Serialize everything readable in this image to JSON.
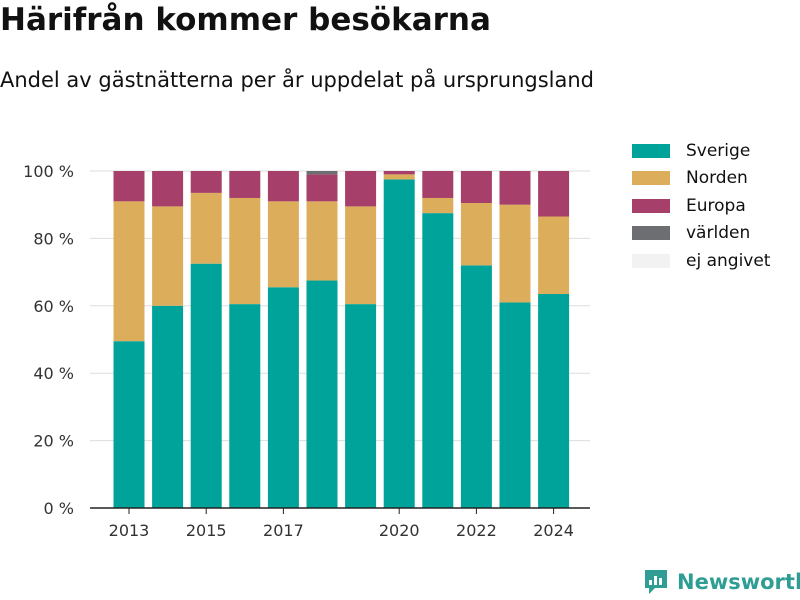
{
  "header": {
    "title": "Härifrån kommer besökarna",
    "subtitle": "Andel av gästnätterna per år uppdelat på ursprungsland"
  },
  "brand": {
    "name": "Newsworthy",
    "color": "#2e9e95"
  },
  "chart_data": {
    "type": "bar",
    "stacked": true,
    "years": [
      2013,
      2014,
      2015,
      2016,
      2017,
      2018,
      2019,
      2020,
      2021,
      2022,
      2023,
      2024
    ],
    "x_ticks": [
      "2013",
      "2015",
      "2017",
      "2020",
      "2022",
      "2024"
    ],
    "x_tick_years": [
      2013,
      2015,
      2017,
      2020,
      2022,
      2024
    ],
    "y_ticks": [
      "0 %",
      "20 %",
      "40 %",
      "60 %",
      "80 %",
      "100 %"
    ],
    "y_tick_values": [
      0,
      20,
      40,
      60,
      80,
      100
    ],
    "ylim": [
      0,
      100
    ],
    "grid": true,
    "legend_position": "right",
    "series": [
      {
        "name": "Sverige",
        "color": "#00a39a",
        "values": [
          49.5,
          60,
          72.5,
          60.5,
          65.5,
          67.5,
          60.5,
          97.5,
          87.5,
          72,
          61,
          63.5
        ]
      },
      {
        "name": "Norden",
        "color": "#dcae5c",
        "values": [
          41.5,
          29.5,
          21,
          31.5,
          25.5,
          23.5,
          29,
          1.5,
          4.5,
          18.5,
          29,
          23
        ]
      },
      {
        "name": "Europa",
        "color": "#a63f6a",
        "values": [
          9,
          10.5,
          6.5,
          8,
          9,
          8,
          10.5,
          1,
          8,
          9.5,
          10,
          13.5
        ]
      },
      {
        "name": "världen",
        "color": "#6d6e72",
        "values": [
          0,
          0,
          0,
          0,
          0,
          1,
          0,
          0,
          0,
          0,
          0,
          0
        ]
      },
      {
        "name": "ej angivet",
        "color": "#f2f2f2",
        "values": [
          0,
          0,
          0,
          0,
          0,
          0,
          0,
          0,
          0,
          0,
          0,
          0
        ]
      }
    ]
  }
}
